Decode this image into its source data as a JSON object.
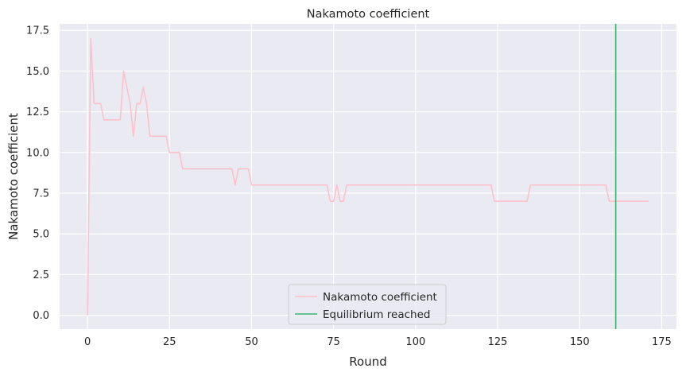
{
  "chart_data": {
    "type": "line",
    "title": "Nakamoto coefficient",
    "xlabel": "Round",
    "ylabel": "Nakamoto coefficient",
    "xlim": [
      -8.5,
      179.5
    ],
    "ylim": [
      -0.85,
      17.9
    ],
    "xticks": [
      0,
      25,
      50,
      75,
      100,
      125,
      150,
      175
    ],
    "yticks": [
      0.0,
      2.5,
      5.0,
      7.5,
      10.0,
      12.5,
      15.0,
      17.5
    ],
    "ytick_labels": [
      "0.0",
      "2.5",
      "5.0",
      "7.5",
      "10.0",
      "12.5",
      "15.0",
      "17.5"
    ],
    "xtick_labels": [
      "0",
      "25",
      "50",
      "75",
      "100",
      "125",
      "150",
      "175"
    ],
    "grid": true,
    "legend_position": "bottom-center",
    "series": [
      {
        "name": "Nakamoto coefficient",
        "color": "#ffc0cb",
        "points": [
          [
            0,
            0
          ],
          [
            1,
            17
          ],
          [
            2,
            13
          ],
          [
            3,
            13
          ],
          [
            4,
            13
          ],
          [
            5,
            12
          ],
          [
            6,
            12
          ],
          [
            7,
            12
          ],
          [
            8,
            12
          ],
          [
            9,
            12
          ],
          [
            10,
            12
          ],
          [
            11,
            15
          ],
          [
            12,
            14
          ],
          [
            13,
            13
          ],
          [
            14,
            11
          ],
          [
            15,
            13
          ],
          [
            16,
            13
          ],
          [
            17,
            14
          ],
          [
            18,
            13
          ],
          [
            19,
            11
          ],
          [
            20,
            11
          ],
          [
            21,
            11
          ],
          [
            22,
            11
          ],
          [
            23,
            11
          ],
          [
            24,
            11
          ],
          [
            25,
            10
          ],
          [
            26,
            10
          ],
          [
            27,
            10
          ],
          [
            28,
            10
          ],
          [
            29,
            9
          ],
          [
            30,
            9
          ],
          [
            44,
            9
          ],
          [
            45,
            8
          ],
          [
            46,
            9
          ],
          [
            47,
            9
          ],
          [
            48,
            9
          ],
          [
            49,
            9
          ],
          [
            50,
            8
          ],
          [
            51,
            8
          ],
          [
            73,
            8
          ],
          [
            74,
            7
          ],
          [
            75,
            7
          ],
          [
            76,
            8
          ],
          [
            77,
            7
          ],
          [
            78,
            7
          ],
          [
            79,
            8
          ],
          [
            80,
            8
          ],
          [
            123,
            8
          ],
          [
            124,
            7
          ],
          [
            125,
            7
          ],
          [
            134,
            7
          ],
          [
            135,
            8
          ],
          [
            136,
            8
          ],
          [
            158,
            8
          ],
          [
            159,
            7
          ],
          [
            160,
            7
          ],
          [
            171,
            7
          ]
        ]
      }
    ],
    "vlines": [
      {
        "name": "Equilibrium reached",
        "x": 161,
        "color": "#3cb371"
      }
    ]
  }
}
